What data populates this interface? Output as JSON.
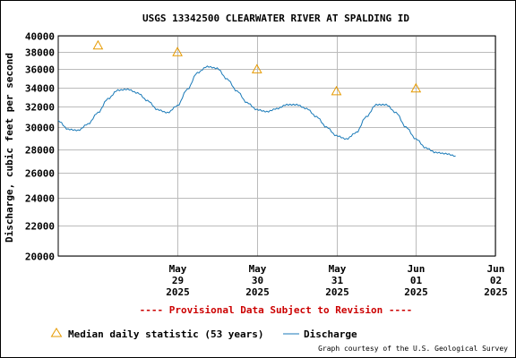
{
  "colors": {
    "discharge": "#1a7ab8",
    "median": "#e69a00",
    "provisional": "#cc0000",
    "grid": "#bbbbbb"
  },
  "chart_data": {
    "type": "line",
    "title": "USGS 13342500 CLEARWATER RIVER AT SPALDING ID",
    "ylabel": "Discharge, cubic feet per second",
    "y_scale": "log",
    "ylim": [
      20000,
      40000
    ],
    "y_ticks": [
      20000,
      22000,
      24000,
      26000,
      28000,
      30000,
      32000,
      34000,
      36000,
      38000,
      40000
    ],
    "y_tick_labels": [
      "20000",
      "22000",
      "24000",
      "26000",
      "28000",
      "30000",
      "32000",
      "34000",
      "36000",
      "38000",
      "40000"
    ],
    "xlim": [
      "2025-05-28T00:00",
      "2025-06-02T12:00"
    ],
    "x_ticks": [
      {
        "x": "2025-05-29T12:00",
        "lines": [
          "May",
          "29",
          "2025"
        ]
      },
      {
        "x": "2025-05-30T12:00",
        "lines": [
          "May",
          "30",
          "2025"
        ]
      },
      {
        "x": "2025-05-31T12:00",
        "lines": [
          "May",
          "31",
          "2025"
        ]
      },
      {
        "x": "2025-06-01T12:00",
        "lines": [
          "Jun",
          "01",
          "2025"
        ]
      },
      {
        "x": "2025-06-02T12:00",
        "lines": [
          "Jun",
          "02",
          "2025"
        ]
      }
    ],
    "grid": true,
    "series": [
      {
        "name": "Discharge",
        "style": "line",
        "points": [
          [
            "2025-05-28T00:00",
            30600
          ],
          [
            "2025-05-28T03:00",
            29800
          ],
          [
            "2025-05-28T06:00",
            29700
          ],
          [
            "2025-05-28T09:00",
            30300
          ],
          [
            "2025-05-28T12:00",
            31400
          ],
          [
            "2025-05-28T15:00",
            32800
          ],
          [
            "2025-05-28T18:00",
            33700
          ],
          [
            "2025-05-28T21:00",
            33800
          ],
          [
            "2025-05-29T00:00",
            33400
          ],
          [
            "2025-05-29T03:00",
            32600
          ],
          [
            "2025-05-29T06:00",
            31700
          ],
          [
            "2025-05-29T09:00",
            31400
          ],
          [
            "2025-05-29T12:00",
            32100
          ],
          [
            "2025-05-29T15:00",
            33800
          ],
          [
            "2025-05-29T18:00",
            35600
          ],
          [
            "2025-05-29T21:00",
            36300
          ],
          [
            "2025-05-30T00:00",
            36100
          ],
          [
            "2025-05-30T03:00",
            34900
          ],
          [
            "2025-05-30T06:00",
            33600
          ],
          [
            "2025-05-30T09:00",
            32400
          ],
          [
            "2025-05-30T12:00",
            31700
          ],
          [
            "2025-05-30T15:00",
            31500
          ],
          [
            "2025-05-30T18:00",
            31800
          ],
          [
            "2025-05-30T21:00",
            32200
          ],
          [
            "2025-05-31T00:00",
            32200
          ],
          [
            "2025-05-31T03:00",
            31800
          ],
          [
            "2025-05-31T06:00",
            31000
          ],
          [
            "2025-05-31T09:00",
            30000
          ],
          [
            "2025-05-31T12:00",
            29200
          ],
          [
            "2025-05-31T15:00",
            28900
          ],
          [
            "2025-05-31T18:00",
            29500
          ],
          [
            "2025-05-31T21:00",
            31000
          ],
          [
            "2025-06-01T00:00",
            32200
          ],
          [
            "2025-06-01T03:00",
            32200
          ],
          [
            "2025-06-01T06:00",
            31400
          ],
          [
            "2025-06-01T09:00",
            30000
          ],
          [
            "2025-06-01T12:00",
            28900
          ],
          [
            "2025-06-01T15:00",
            28100
          ],
          [
            "2025-06-01T18:00",
            27700
          ],
          [
            "2025-06-01T21:00",
            27600
          ],
          [
            "2025-06-02T00:00",
            27400
          ]
        ]
      },
      {
        "name": "Median daily statistic (53 years)",
        "style": "marker-triangle",
        "points": [
          [
            "2025-05-28T12:00",
            38800
          ],
          [
            "2025-05-29T12:00",
            38000
          ],
          [
            "2025-05-30T12:00",
            36000
          ],
          [
            "2025-05-31T12:00",
            33600
          ],
          [
            "2025-06-01T12:00",
            33900
          ]
        ]
      }
    ]
  },
  "provisional_note": "---- Provisional Data Subject to Revision ----",
  "legend": {
    "median_label": "Median daily statistic (53 years)",
    "discharge_label": "Discharge"
  },
  "credit": "Graph courtesy of the U.S. Geological Survey"
}
